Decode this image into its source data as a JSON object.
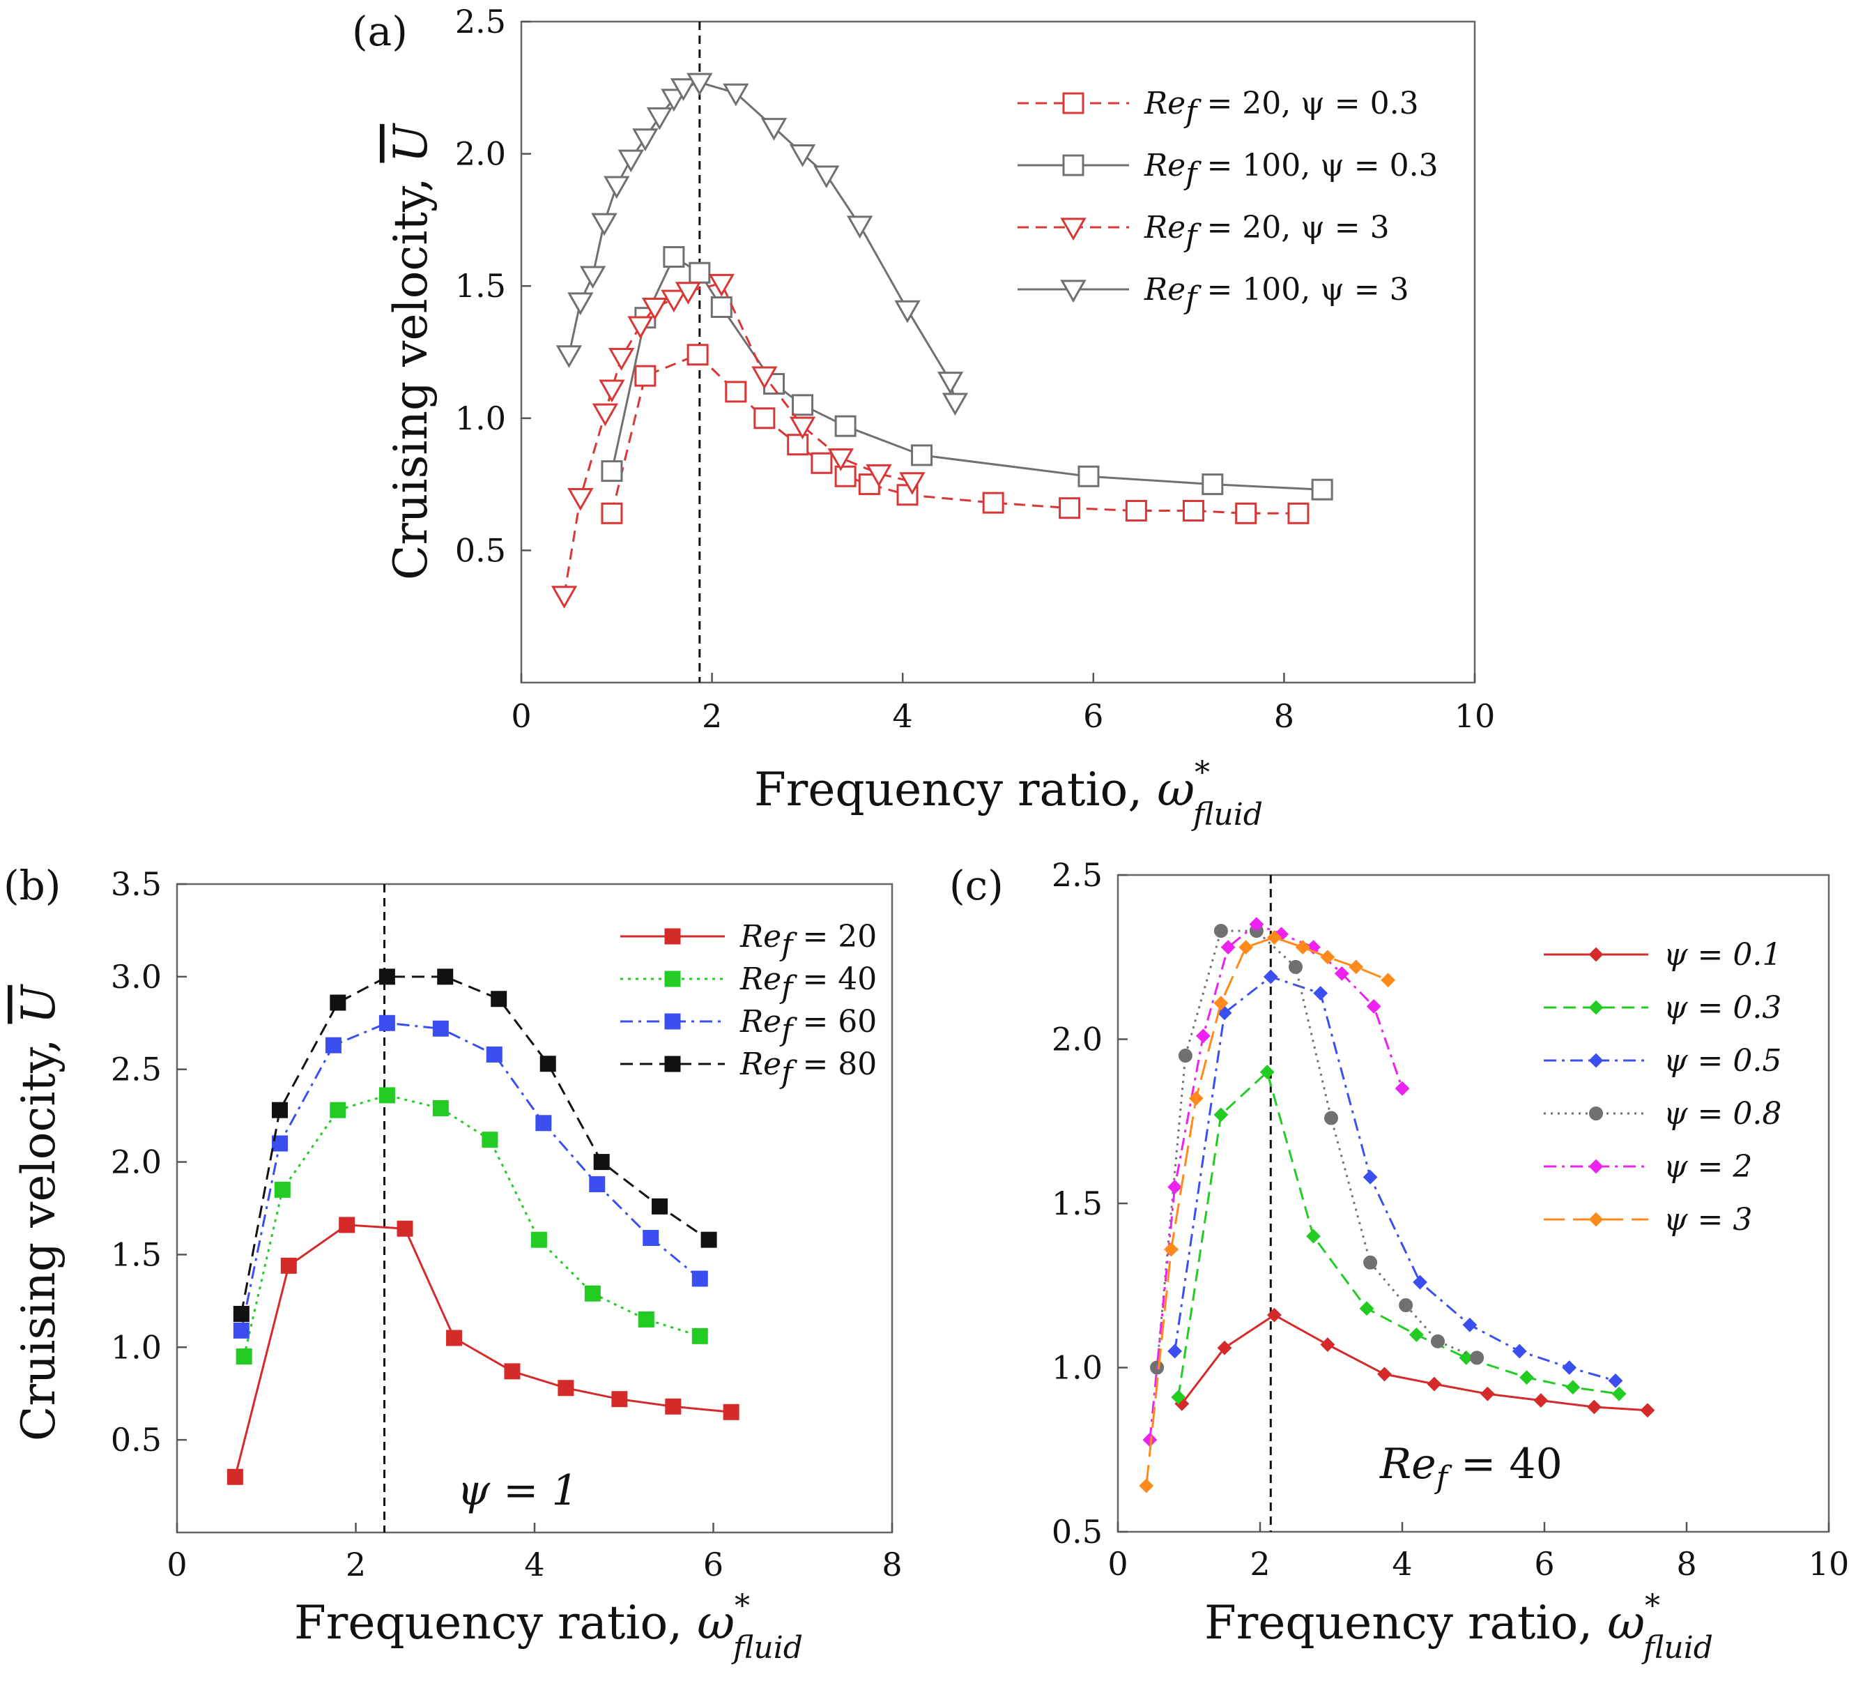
{
  "figure": {
    "background": "#ffffff"
  },
  "chart_data": [
    {
      "id": "a",
      "panel_label": "(a)",
      "type": "line",
      "title": "",
      "xlabel": "Frequency ratio,",
      "xlabel_symbol": "ω",
      "xlabel_sup": "*",
      "xlabel_sub": "fluid",
      "ylabel": "Cruising velocity,",
      "ylabel_symbol": "U",
      "xlim": [
        0,
        10
      ],
      "ylim": [
        0,
        2.5
      ],
      "xticks": [
        0,
        2,
        4,
        6,
        8,
        10
      ],
      "yticks": [
        0.5,
        1.0,
        1.5,
        2.0,
        2.5
      ],
      "xtick_labels": [
        "0",
        "2",
        "4",
        "6",
        "8",
        "10"
      ],
      "ytick_labels": [
        "0.5",
        "1.0",
        "1.5",
        "2.0",
        "2.5"
      ],
      "grid": false,
      "vline_x": 1.87,
      "legend_placement": "top-right",
      "annotation": "",
      "series": [
        {
          "name": "Re_f = 20, ψ = 0.3",
          "label_main": "Re",
          "label_sub": "f",
          "label_rest": " = 20, ψ = 0.3",
          "color": "#d93636",
          "dash": "16,10",
          "marker": "square",
          "marker_filled": false,
          "x": [
            0.95,
            1.3,
            1.85,
            2.25,
            2.55,
            2.9,
            3.15,
            3.4,
            3.65,
            4.05,
            4.95,
            5.75,
            6.45,
            7.05,
            7.6,
            8.15
          ],
          "y": [
            0.64,
            1.16,
            1.24,
            1.1,
            1.0,
            0.9,
            0.83,
            0.78,
            0.75,
            0.71,
            0.68,
            0.66,
            0.65,
            0.65,
            0.64,
            0.64
          ]
        },
        {
          "name": "Re_f = 100, ψ = 0.3",
          "label_main": "Re",
          "label_sub": "f",
          "label_rest": " = 100, ψ = 0.3",
          "color": "#707070",
          "dash": "",
          "marker": "square",
          "marker_filled": false,
          "x": [
            0.95,
            1.3,
            1.6,
            1.87,
            2.1,
            2.65,
            2.95,
            3.4,
            4.2,
            5.95,
            7.25,
            8.4
          ],
          "y": [
            0.8,
            1.38,
            1.61,
            1.55,
            1.42,
            1.13,
            1.05,
            0.97,
            0.86,
            0.78,
            0.75,
            0.73
          ]
        },
        {
          "name": "Re_f = 20, ψ = 3",
          "label_main": "Re",
          "label_sub": "f",
          "label_rest": " = 20, ψ = 3",
          "color": "#d93636",
          "dash": "16,10",
          "marker": "tri-down",
          "marker_filled": false,
          "x": [
            0.45,
            0.62,
            0.88,
            0.95,
            1.05,
            1.25,
            1.4,
            1.6,
            1.75,
            2.1,
            2.55,
            2.95,
            3.35,
            3.75,
            4.1
          ],
          "y": [
            0.33,
            0.7,
            1.02,
            1.11,
            1.23,
            1.35,
            1.42,
            1.45,
            1.48,
            1.51,
            1.16,
            0.97,
            0.85,
            0.79,
            0.76
          ]
        },
        {
          "name": "Re_f = 100, ψ = 3",
          "label_main": "Re",
          "label_sub": "f",
          "label_rest": " = 100, ψ = 3",
          "color": "#707070",
          "dash": "",
          "marker": "tri-down",
          "marker_filled": false,
          "x": [
            0.5,
            0.62,
            0.75,
            0.87,
            1.0,
            1.15,
            1.3,
            1.45,
            1.6,
            1.7,
            1.87,
            2.25,
            2.65,
            2.95,
            3.2,
            3.55,
            4.05,
            4.5,
            4.55
          ],
          "y": [
            1.24,
            1.44,
            1.54,
            1.74,
            1.88,
            1.98,
            2.06,
            2.14,
            2.21,
            2.25,
            2.27,
            2.23,
            2.1,
            2.0,
            1.92,
            1.73,
            1.41,
            1.14,
            1.06
          ]
        }
      ]
    },
    {
      "id": "b",
      "panel_label": "(b)",
      "type": "line",
      "title": "",
      "xlabel": "Frequency ratio,",
      "xlabel_symbol": "ω",
      "xlabel_sup": "*",
      "xlabel_sub": "fluid",
      "ylabel": "Cruising velocity,",
      "ylabel_symbol": "U",
      "xlim": [
        0,
        8
      ],
      "ylim": [
        0,
        3.5
      ],
      "xticks": [
        0,
        2,
        4,
        6,
        8
      ],
      "yticks": [
        0.5,
        1.0,
        1.5,
        2.0,
        2.5,
        3.0,
        3.5
      ],
      "xtick_labels": [
        "0",
        "2",
        "4",
        "6",
        "8"
      ],
      "ytick_labels": [
        "0.5",
        "1.0",
        "1.5",
        "2.0",
        "2.5",
        "3.0",
        "3.5"
      ],
      "grid": false,
      "vline_x": 2.32,
      "legend_placement": "top-right",
      "annotation": "ψ = 1",
      "series": [
        {
          "name": "Re_f = 20",
          "label_main": "Re",
          "label_sub": "f",
          "label_rest": " = 20",
          "color": "#d42a2a",
          "dash": "",
          "marker": "square",
          "marker_filled": true,
          "x": [
            0.65,
            1.25,
            1.9,
            2.55,
            3.1,
            3.75,
            4.35,
            4.95,
            5.55,
            6.2
          ],
          "y": [
            0.3,
            1.44,
            1.66,
            1.64,
            1.05,
            0.87,
            0.78,
            0.72,
            0.68,
            0.65
          ]
        },
        {
          "name": "Re_f = 40",
          "label_main": "Re",
          "label_sub": "f",
          "label_rest": " = 40",
          "color": "#22cc22",
          "dash": "4,7",
          "marker": "square",
          "marker_filled": true,
          "x": [
            0.75,
            1.18,
            1.8,
            2.35,
            2.95,
            3.5,
            4.05,
            4.65,
            5.25,
            5.85
          ],
          "y": [
            0.95,
            1.85,
            2.28,
            2.36,
            2.29,
            2.12,
            1.58,
            1.29,
            1.15,
            1.06
          ]
        },
        {
          "name": "Re_f = 60",
          "label_main": "Re",
          "label_sub": "f",
          "label_rest": " = 60",
          "color": "#3b4ff0",
          "dash": "18,8,4,8",
          "marker": "square",
          "marker_filled": true,
          "x": [
            0.72,
            1.15,
            1.75,
            2.35,
            2.95,
            3.55,
            4.1,
            4.7,
            5.3,
            5.85
          ],
          "y": [
            1.09,
            2.1,
            2.63,
            2.75,
            2.72,
            2.58,
            2.21,
            1.88,
            1.59,
            1.37
          ]
        },
        {
          "name": "Re_f = 80",
          "label_main": "Re",
          "label_sub": "f",
          "label_rest": " = 80",
          "color": "#111111",
          "dash": "18,10",
          "marker": "square",
          "marker_filled": true,
          "x": [
            0.72,
            1.15,
            1.8,
            2.35,
            3.0,
            3.6,
            4.15,
            4.75,
            5.4,
            5.95
          ],
          "y": [
            1.18,
            2.28,
            2.86,
            3.0,
            3.0,
            2.88,
            2.53,
            2.0,
            1.76,
            1.58
          ]
        }
      ]
    },
    {
      "id": "c",
      "panel_label": "(c)",
      "type": "line",
      "title": "",
      "xlabel": "Frequency ratio,",
      "xlabel_symbol": "ω",
      "xlabel_sup": "*",
      "xlabel_sub": "fluid",
      "ylabel": "",
      "ylabel_symbol": "",
      "xlim": [
        0,
        10
      ],
      "ylim": [
        0.5,
        2.5
      ],
      "xticks": [
        0,
        2,
        4,
        6,
        8,
        10
      ],
      "yticks": [
        0.5,
        1.0,
        1.5,
        2.0,
        2.5
      ],
      "xtick_labels": [
        "0",
        "2",
        "4",
        "6",
        "8",
        "10"
      ],
      "ytick_labels": [
        "0.5",
        "1.0",
        "1.5",
        "2.0",
        "2.5"
      ],
      "grid": false,
      "vline_x": 2.15,
      "legend_placement": "top-right",
      "annotation": "Re_f = 40",
      "annotation_main": "Re",
      "annotation_sub": "f",
      "annotation_rest": " = 40",
      "series": [
        {
          "name": "ψ = 0.1",
          "label_main": "ψ = 0.1",
          "label_sub": "",
          "label_rest": "",
          "color": "#d42a2a",
          "dash": "",
          "marker": "diamond",
          "marker_filled": true,
          "x": [
            0.9,
            1.5,
            2.2,
            2.95,
            3.75,
            4.45,
            5.2,
            5.95,
            6.7,
            7.45
          ],
          "y": [
            0.89,
            1.06,
            1.16,
            1.07,
            0.98,
            0.95,
            0.92,
            0.9,
            0.88,
            0.87
          ]
        },
        {
          "name": "ψ = 0.3",
          "label_main": "ψ = 0.3",
          "label_sub": "",
          "label_rest": "",
          "color": "#22cc22",
          "dash": "18,10",
          "marker": "diamond",
          "marker_filled": true,
          "x": [
            0.85,
            1.45,
            2.1,
            2.75,
            3.5,
            4.2,
            4.9,
            5.75,
            6.4,
            7.05
          ],
          "y": [
            0.91,
            1.77,
            1.9,
            1.4,
            1.18,
            1.1,
            1.03,
            0.97,
            0.94,
            0.92
          ]
        },
        {
          "name": "ψ = 0.5",
          "label_main": "ψ = 0.5",
          "label_sub": "",
          "label_rest": "",
          "color": "#3b4ff0",
          "dash": "18,8,4,8",
          "marker": "diamond",
          "marker_filled": true,
          "x": [
            0.8,
            1.5,
            2.15,
            2.85,
            3.55,
            4.25,
            4.95,
            5.65,
            6.35,
            7.0
          ],
          "y": [
            1.05,
            2.08,
            2.19,
            2.14,
            1.58,
            1.26,
            1.13,
            1.05,
            1.0,
            0.96
          ]
        },
        {
          "name": "ψ = 0.8",
          "label_main": "ψ = 0.8",
          "label_sub": "",
          "label_rest": "",
          "color": "#707070",
          "dash": "3,7",
          "marker": "circle",
          "marker_filled": true,
          "x": [
            0.55,
            0.95,
            1.45,
            1.95,
            2.5,
            3.0,
            3.55,
            4.05,
            4.5,
            5.05
          ],
          "y": [
            1.0,
            1.95,
            2.33,
            2.33,
            2.22,
            1.76,
            1.32,
            1.19,
            1.08,
            1.03
          ]
        },
        {
          "name": "ψ = 2",
          "label_main": "ψ = 2",
          "label_sub": "",
          "label_rest": "",
          "color": "#ee22ee",
          "dash": "18,8,4,8",
          "marker": "diamond",
          "marker_filled": true,
          "x": [
            0.45,
            0.8,
            1.2,
            1.55,
            1.95,
            2.3,
            2.75,
            3.15,
            3.6,
            4.0
          ],
          "y": [
            0.78,
            1.55,
            2.01,
            2.28,
            2.35,
            2.32,
            2.28,
            2.2,
            2.1,
            1.85
          ]
        },
        {
          "name": "ψ = 3",
          "label_main": "ψ = 3",
          "label_sub": "",
          "label_rest": "",
          "color": "#ff8a1c",
          "dash": "30,12",
          "marker": "diamond",
          "marker_filled": true,
          "x": [
            0.4,
            0.75,
            1.1,
            1.45,
            1.8,
            2.2,
            2.6,
            2.95,
            3.35,
            3.8
          ],
          "y": [
            0.64,
            1.36,
            1.82,
            2.11,
            2.28,
            2.31,
            2.28,
            2.25,
            2.22,
            2.18
          ]
        }
      ]
    }
  ]
}
